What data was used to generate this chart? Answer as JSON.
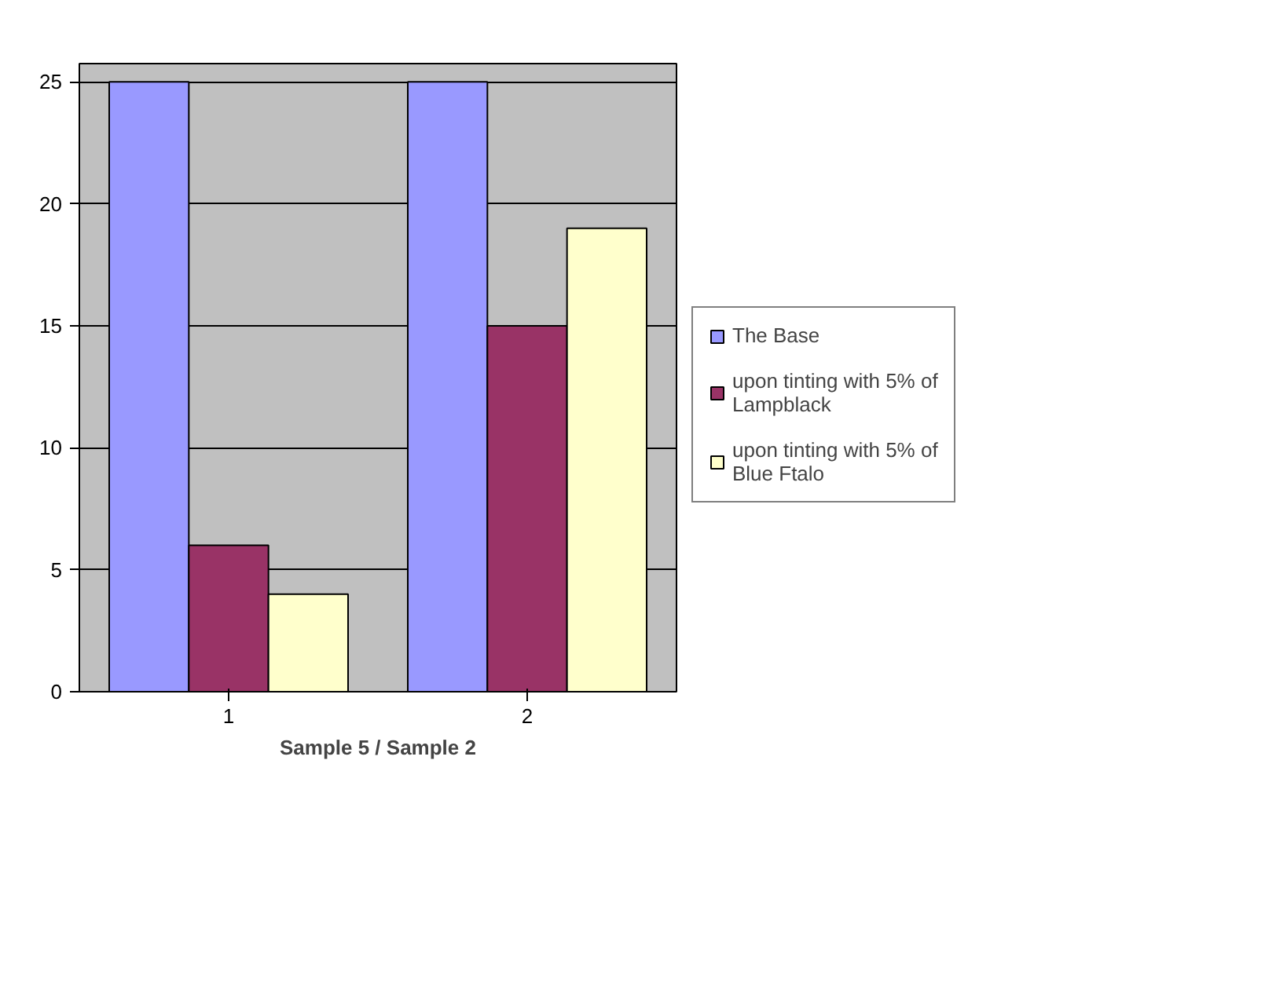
{
  "chart_data": {
    "type": "bar",
    "xlabel": "Sample 5 / Sample 2",
    "categories": [
      "1",
      "2"
    ],
    "series": [
      {
        "name": "The Base",
        "color": "#9999ff",
        "values": [
          25,
          25
        ]
      },
      {
        "name": "upon tinting with 5% of Lampblack",
        "color": "#993366",
        "values": [
          6,
          15
        ]
      },
      {
        "name": "upon tinting with 5% of Blue Ftalo",
        "color": "#ffffcc",
        "values": [
          4,
          19
        ]
      }
    ],
    "ylim": [
      0,
      25
    ],
    "yticks": [
      0,
      5,
      10,
      15,
      20,
      25
    ],
    "grid": "y",
    "legend": "right"
  }
}
